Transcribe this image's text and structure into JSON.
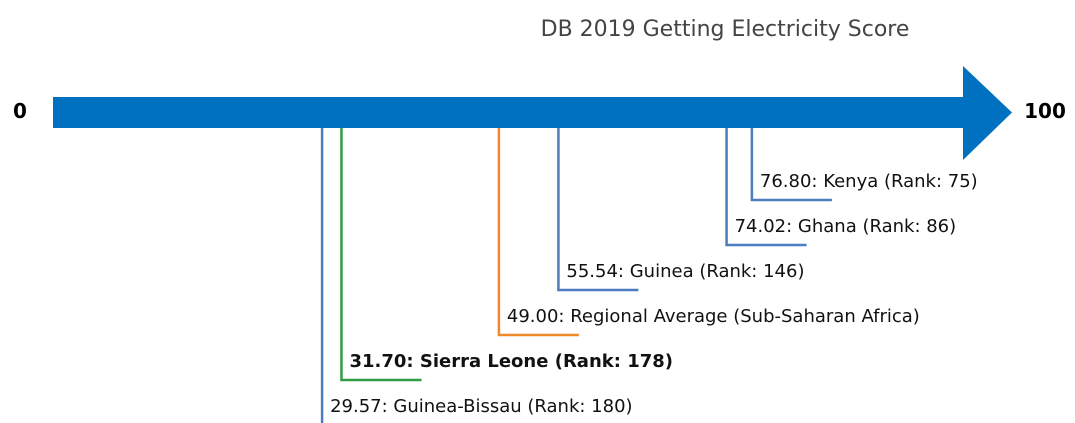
{
  "chart_data": {
    "type": "number-line",
    "title": "DB 2019 Getting Electricity Score",
    "xlim": [
      0,
      100
    ],
    "xticks": [
      0,
      100
    ],
    "axis_color": "#0070c0",
    "values": [
      76.8,
      74.02,
      55.54,
      49.0,
      31.7,
      29.57
    ],
    "labels": [
      "76.80: Kenya (Rank: 75)",
      "74.02: Ghana (Rank: 86)",
      "55.54: Guinea (Rank: 146)",
      "49.00: Regional Average (Sub-Saharan Africa)",
      "31.70: Sierra Leone (Rank: 178)",
      "29.57: Guinea-Bissau (Rank: 180)"
    ],
    "colors": [
      "#4c7dbf",
      "#4c7dbf",
      "#4c7dbf",
      "#f0892a",
      "#2e9e48",
      "#4c7dbf"
    ],
    "highlight": 4
  }
}
